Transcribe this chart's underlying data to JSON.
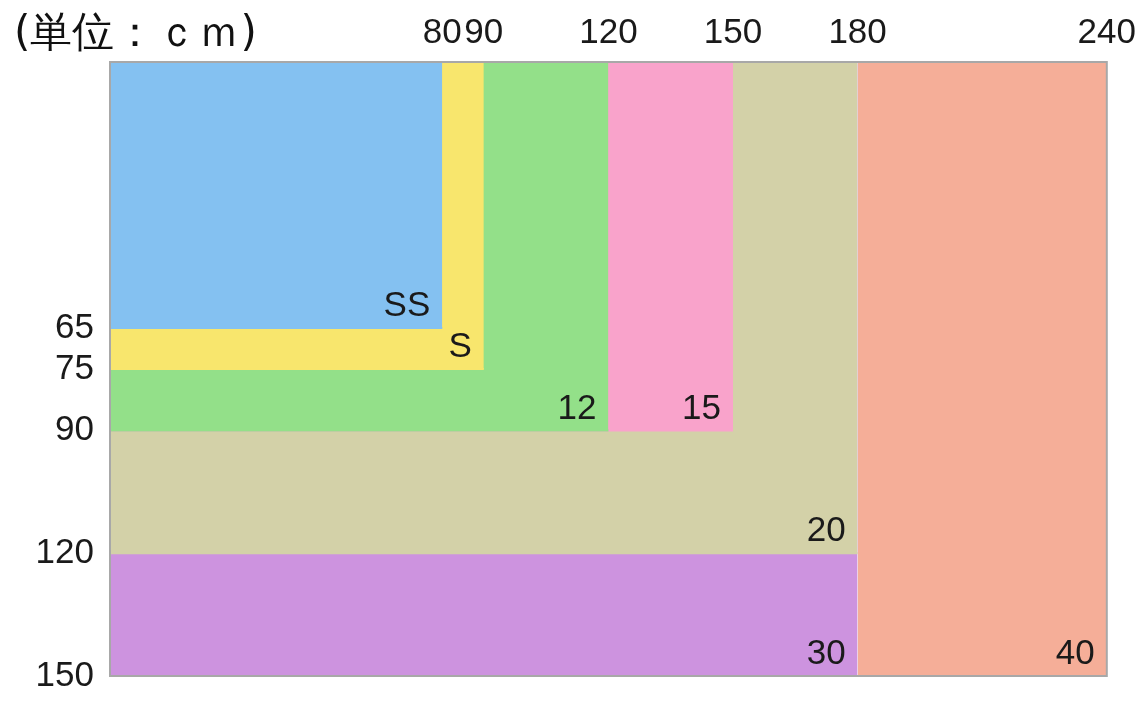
{
  "chart_data": {
    "type": "area",
    "title": "(単位：ｃｍ)",
    "marker": "none",
    "xlim": [
      0,
      240
    ],
    "xticks": [
      80,
      90,
      120,
      150,
      180,
      240
    ],
    "ylim": [
      150,
      0
    ],
    "yticks": [
      65,
      75,
      90,
      120,
      150
    ],
    "series": [
      {
        "name": "SS",
        "color": "#84c1f1",
        "x": [
          0,
          80
        ],
        "values": [
          65,
          65
        ]
      },
      {
        "name": "S",
        "color": "#f8e66d",
        "x": [
          0,
          90
        ],
        "values": [
          75,
          75
        ]
      },
      {
        "name": "12",
        "color": "#93e089",
        "x": [
          0,
          120
        ],
        "values": [
          90,
          90
        ]
      },
      {
        "name": "15",
        "color": "#f9a3cb",
        "x": [
          0,
          150
        ],
        "values": [
          90,
          90
        ]
      },
      {
        "name": "20",
        "color": "#d3d1a8",
        "x": [
          0,
          180
        ],
        "values": [
          120,
          120
        ]
      },
      {
        "name": "30",
        "color": "#cd93df",
        "x": [
          0,
          180
        ],
        "values": [
          150,
          150
        ]
      },
      {
        "name": "40",
        "color": "#f5ae98",
        "x": [
          180,
          240
        ],
        "values": [
          150,
          150
        ]
      }
    ]
  }
}
